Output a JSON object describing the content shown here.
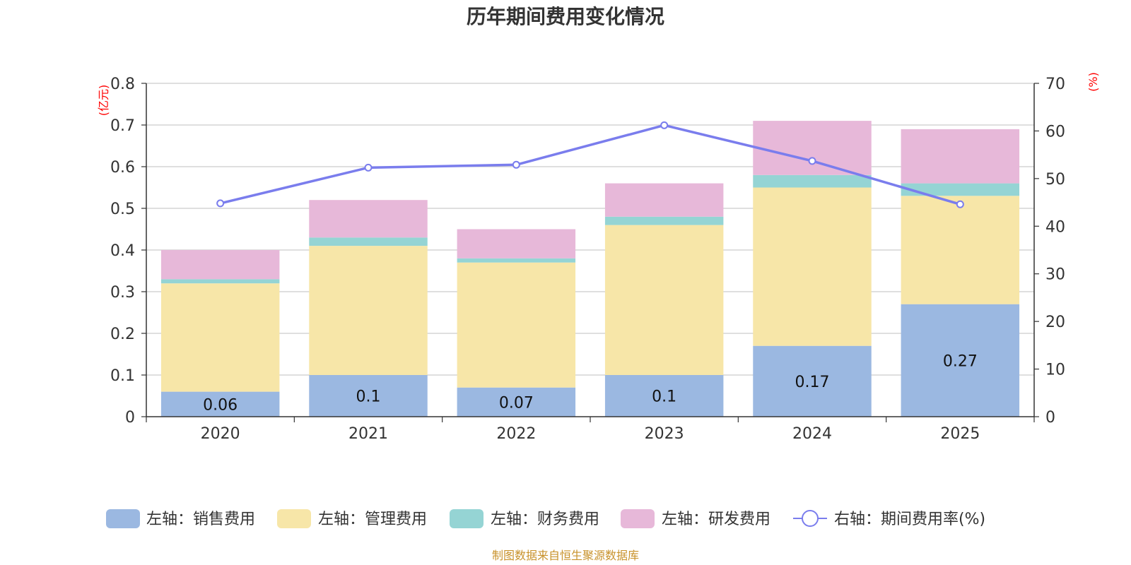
{
  "chart_data": {
    "type": "bar",
    "title": "历年期间费用变化情况",
    "categories": [
      "2020",
      "2021",
      "2022",
      "2023",
      "2024",
      "2025"
    ],
    "left_axis": {
      "unit": "(亿元)",
      "ylim": [
        0,
        0.8
      ],
      "ticks": [
        "0",
        "0.1",
        "0.2",
        "0.3",
        "0.4",
        "0.5",
        "0.6",
        "0.7",
        "0.8"
      ]
    },
    "right_axis": {
      "unit": "(%)",
      "ylim": [
        0,
        70
      ],
      "ticks": [
        "0",
        "10",
        "20",
        "30",
        "40",
        "50",
        "60",
        "70"
      ]
    },
    "series": [
      {
        "name": "左轴：销售费用",
        "axis": "left",
        "kind": "bar",
        "color": "#9bb8e1",
        "values": [
          0.06,
          0.1,
          0.07,
          0.1,
          0.17,
          0.27
        ],
        "labels": [
          "0.06",
          "0.1",
          "0.07",
          "0.1",
          "0.17",
          "0.27"
        ]
      },
      {
        "name": "左轴：管理费用",
        "axis": "left",
        "kind": "bar",
        "color": "#f7e6a8",
        "values": [
          0.26,
          0.31,
          0.3,
          0.36,
          0.38,
          0.26
        ]
      },
      {
        "name": "左轴：财务费用",
        "axis": "left",
        "kind": "bar",
        "color": "#95d4d4",
        "values": [
          0.01,
          0.02,
          0.01,
          0.02,
          0.03,
          0.03
        ]
      },
      {
        "name": "左轴：研发费用",
        "axis": "left",
        "kind": "bar",
        "color": "#e7b8d9",
        "values": [
          0.07,
          0.09,
          0.07,
          0.08,
          0.13,
          0.13
        ]
      },
      {
        "name": "右轴：期间费用率(%)",
        "axis": "right",
        "kind": "line",
        "color": "#7a7ded",
        "values": [
          44.8,
          52.3,
          52.9,
          61.2,
          53.7,
          44.6
        ]
      }
    ],
    "legend_position": "bottom",
    "grid": true
  },
  "source": "制图数据来自恒生聚源数据库"
}
